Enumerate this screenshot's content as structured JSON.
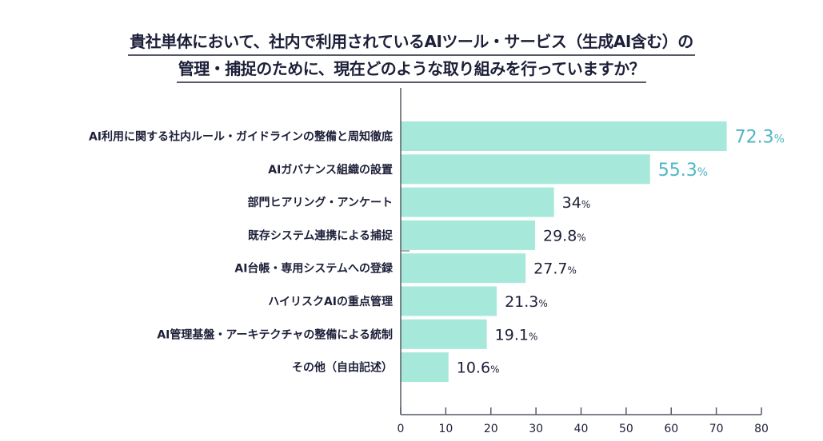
{
  "chart_data": {
    "type": "bar",
    "orientation": "horizontal",
    "title": [
      "貴社単体において、社内で利用されているAIツール・サービス（生成AI含む）の",
      "管理・捕捉のために、現在どのような取り組みを行っていますか？"
    ],
    "categories": [
      "AI利用に関する社内ルール・ガイドラインの整備と周知徹底",
      "AIガバナンス組織の設置",
      "部門ヒアリング・アンケート",
      "既存システム連携による捕捉",
      "AI台帳・専用システムへの登録",
      "ハイリスクAIの重点管理",
      "AI管理基盤・アーキテクチャの整備による統制",
      "その他（自由記述）"
    ],
    "values": [
      72.3,
      55.3,
      34,
      29.8,
      27.7,
      21.3,
      19.1,
      10.6
    ],
    "value_labels": [
      "72.3",
      "55.3",
      "34",
      "29.8",
      "27.7",
      "21.3",
      "19.1",
      "10.6"
    ],
    "unit": "%",
    "highlighted": [
      0,
      1
    ],
    "xlim": [
      0,
      80
    ],
    "xticks": [
      0,
      10,
      20,
      30,
      40,
      50,
      60,
      70,
      80
    ],
    "grid": false,
    "xlabel": "",
    "ylabel": "",
    "colors": {
      "bar": "#a6e9da",
      "highlight_label": "#4eb6c2",
      "text": "#1c1f38",
      "axis": "#555a66"
    }
  }
}
